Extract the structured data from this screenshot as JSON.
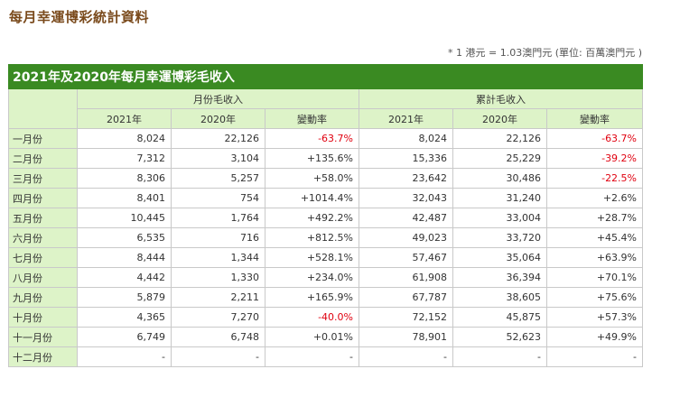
{
  "page_title": "每月幸運博彩統計資料",
  "note": "* 1 港元 = 1.03澳門元 (單位: 百萬澳門元 )",
  "table": {
    "caption": "2021年及2020年每月幸運博彩毛收入",
    "group_headers": [
      "月份毛收入",
      "累計毛收入"
    ],
    "sub_headers": [
      "2021年",
      "2020年",
      "變動率",
      "2021年",
      "2020年",
      "變動率"
    ],
    "rows": [
      {
        "month": "一月份",
        "cells": [
          "8,024",
          "22,126",
          "-63.7%",
          "8,024",
          "22,126",
          "-63.7%"
        ]
      },
      {
        "month": "二月份",
        "cells": [
          "7,312",
          "3,104",
          "+135.6%",
          "15,336",
          "25,229",
          "-39.2%"
        ]
      },
      {
        "month": "三月份",
        "cells": [
          "8,306",
          "5,257",
          "+58.0%",
          "23,642",
          "30,486",
          "-22.5%"
        ]
      },
      {
        "month": "四月份",
        "cells": [
          "8,401",
          "754",
          "+1014.4%",
          "32,043",
          "31,240",
          "+2.6%"
        ]
      },
      {
        "month": "五月份",
        "cells": [
          "10,445",
          "1,764",
          "+492.2%",
          "42,487",
          "33,004",
          "+28.7%"
        ]
      },
      {
        "month": "六月份",
        "cells": [
          "6,535",
          "716",
          "+812.5%",
          "49,023",
          "33,720",
          "+45.4%"
        ]
      },
      {
        "month": "七月份",
        "cells": [
          "8,444",
          "1,344",
          "+528.1%",
          "57,467",
          "35,064",
          "+63.9%"
        ]
      },
      {
        "month": "八月份",
        "cells": [
          "4,442",
          "1,330",
          "+234.0%",
          "61,908",
          "36,394",
          "+70.1%"
        ]
      },
      {
        "month": "九月份",
        "cells": [
          "5,879",
          "2,211",
          "+165.9%",
          "67,787",
          "38,605",
          "+75.6%"
        ]
      },
      {
        "month": "十月份",
        "cells": [
          "4,365",
          "7,270",
          "-40.0%",
          "72,152",
          "45,875",
          "+57.3%"
        ]
      },
      {
        "month": "十一月份",
        "cells": [
          "6,749",
          "6,748",
          "+0.01%",
          "78,901",
          "52,623",
          "+49.9%"
        ]
      },
      {
        "month": "十二月份",
        "cells": [
          "-",
          "-",
          "-",
          "-",
          "-",
          "-"
        ]
      }
    ]
  },
  "colors": {
    "header_green": "#3a8a22",
    "header_bg": "#ddf3c8",
    "negative": "#e0000f"
  }
}
